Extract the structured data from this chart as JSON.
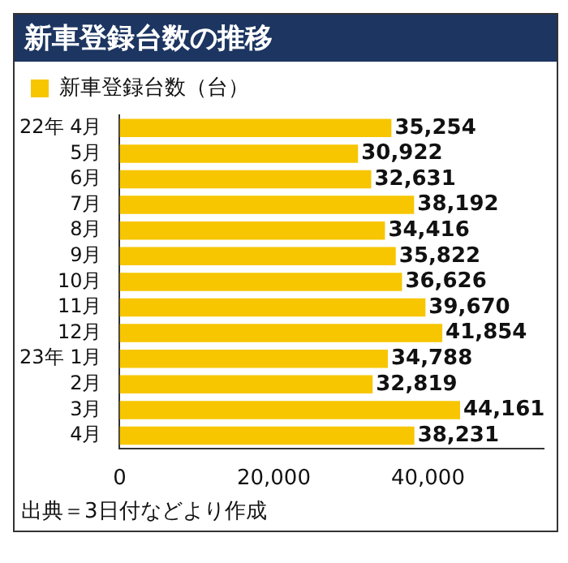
{
  "chart_data": {
    "type": "bar",
    "orientation": "horizontal",
    "title": "新車登録台数の推移",
    "categories": [
      "22年 4月",
      "5月",
      "6月",
      "7月",
      "8月",
      "9月",
      "10月",
      "11月",
      "12月",
      "23年 1月",
      "2月",
      "3月",
      "4月"
    ],
    "series": [
      {
        "name": "新車登録台数（台）",
        "color": "#f7c600",
        "values": [
          35254,
          30922,
          32631,
          38192,
          34416,
          35822,
          36626,
          39670,
          41854,
          34788,
          32819,
          44161,
          38231
        ],
        "value_labels": [
          "35,254",
          "30,922",
          "32,631",
          "38,192",
          "34,416",
          "35,822",
          "36,626",
          "39,670",
          "41,854",
          "34,788",
          "32,819",
          "44,161",
          "38,231"
        ]
      }
    ],
    "xlim": [
      0,
      55000
    ],
    "xticks": [
      0,
      {
        "value": 20000,
        "label": "20,000"
      },
      {
        "value": 40000,
        "label": "40,000"
      }
    ],
    "legend": "top left",
    "annotations": [
      "出典＝3日付などより作成"
    ]
  }
}
